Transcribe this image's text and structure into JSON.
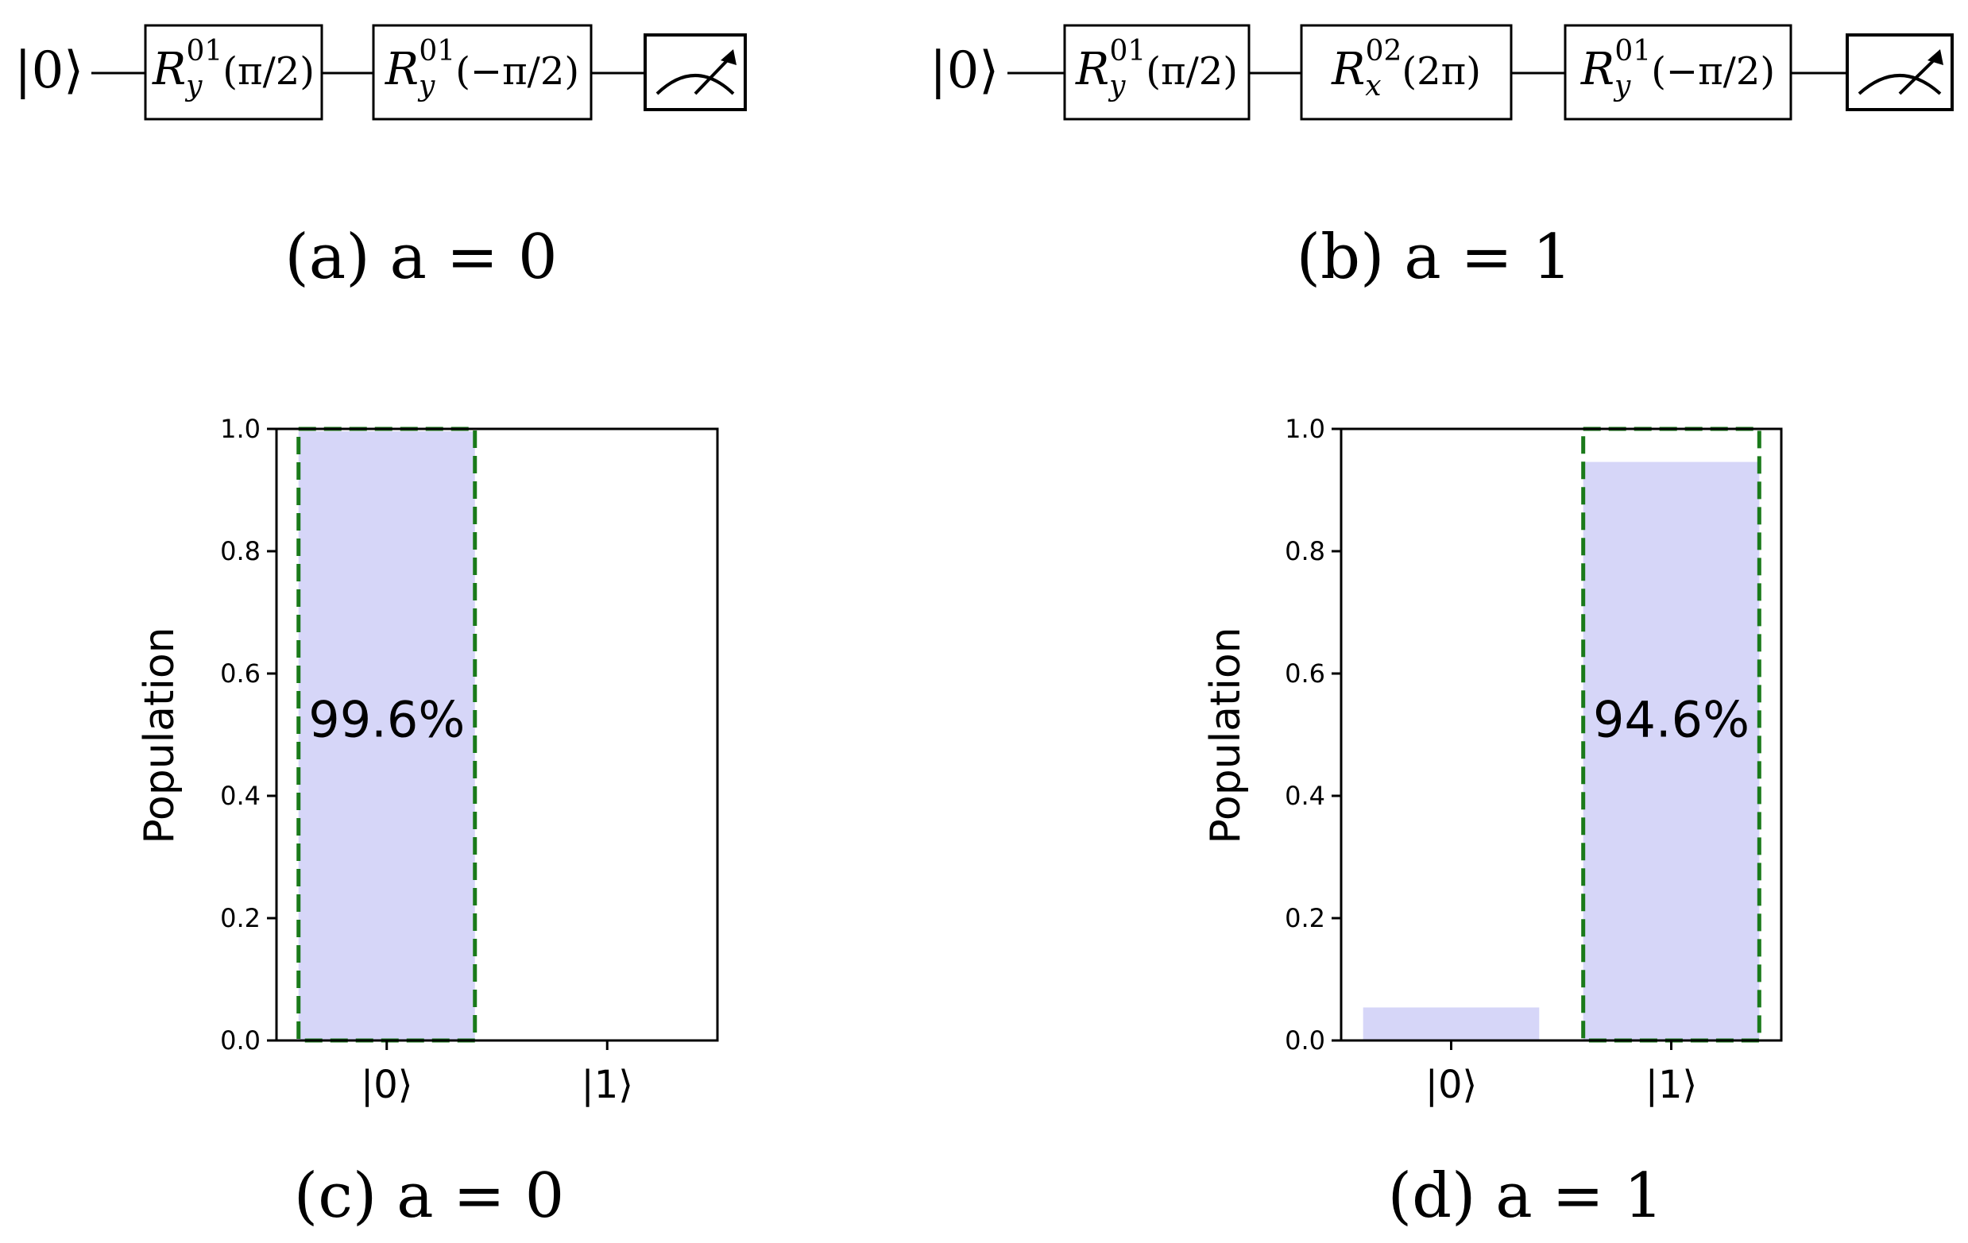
{
  "circuits": [
    {
      "input": "|0⟩",
      "gates": [
        {
          "base": "R",
          "sub": "y",
          "sup": "01",
          "arg": "(π/2)"
        },
        {
          "base": "R",
          "sub": "y",
          "sup": "01",
          "arg": "(−π/2)"
        }
      ],
      "measure_icon": "meter-icon",
      "caption": "(a) a = 0"
    },
    {
      "input": "|0⟩",
      "gates": [
        {
          "base": "R",
          "sub": "y",
          "sup": "01",
          "arg": "(π/2)"
        },
        {
          "base": "R",
          "sub": "x",
          "sup": "02",
          "arg": "(2π)"
        },
        {
          "base": "R",
          "sub": "y",
          "sup": "01",
          "arg": "(−π/2)"
        }
      ],
      "measure_icon": "meter-icon",
      "caption": "(b) a = 1"
    }
  ],
  "chart_data": [
    {
      "type": "bar",
      "categories": [
        "|0⟩",
        "|1⟩"
      ],
      "values": [
        0.996,
        0.0
      ],
      "ideal": [
        1.0,
        0.0
      ],
      "annotation": "99.6%",
      "annotation_category": 0,
      "ylabel": "Population",
      "ylim": [
        0,
        1.0
      ],
      "yticks": [
        "0.0",
        "0.2",
        "0.4",
        "0.6",
        "0.8",
        "1.0"
      ],
      "bar_color": "#d6d6f8",
      "ideal_color": "#1a7a1a",
      "caption": "(c) a = 0"
    },
    {
      "type": "bar",
      "categories": [
        "|0⟩",
        "|1⟩"
      ],
      "values": [
        0.054,
        0.946
      ],
      "ideal": [
        0.0,
        1.0
      ],
      "annotation": "94.6%",
      "annotation_category": 1,
      "ylabel": "Population",
      "ylim": [
        0,
        1.0
      ],
      "yticks": [
        "0.0",
        "0.2",
        "0.4",
        "0.6",
        "0.8",
        "1.0"
      ],
      "bar_color": "#d6d6f8",
      "ideal_color": "#1a7a1a",
      "caption": "(d) a = 1"
    }
  ]
}
